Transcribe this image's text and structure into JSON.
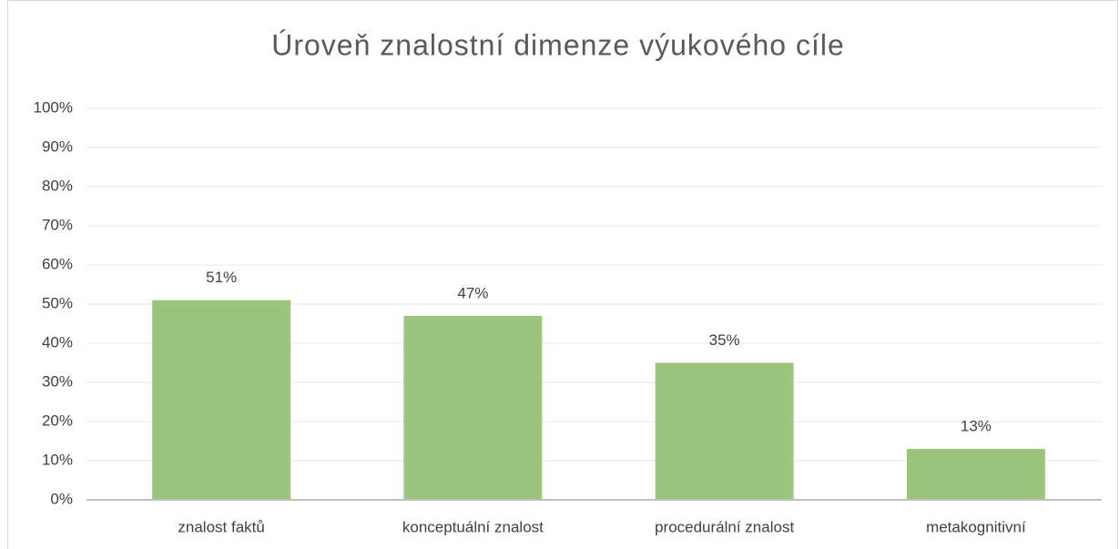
{
  "chart_data": {
    "type": "bar",
    "title": "Úroveň znalostní dimenze výukového cíle",
    "categories": [
      "znalost faktů",
      "konceptuální znalost",
      "procedurální znalost",
      "metakognitivní"
    ],
    "values": [
      51,
      47,
      35,
      13
    ],
    "value_labels": [
      "51%",
      "47%",
      "35%",
      "13%"
    ],
    "color": "#9bc47d",
    "ylim": [
      0,
      100
    ],
    "yticks": [
      {
        "value": 0,
        "label": "0%"
      },
      {
        "value": 10,
        "label": "10%"
      },
      {
        "value": 20,
        "label": "20%"
      },
      {
        "value": 30,
        "label": "30%"
      },
      {
        "value": 40,
        "label": "40%"
      },
      {
        "value": 50,
        "label": "50%"
      },
      {
        "value": 60,
        "label": "60%"
      },
      {
        "value": 70,
        "label": "70%"
      },
      {
        "value": 80,
        "label": "80%"
      },
      {
        "value": 90,
        "label": "90%"
      },
      {
        "value": 100,
        "label": "100%"
      }
    ],
    "grid": true
  }
}
